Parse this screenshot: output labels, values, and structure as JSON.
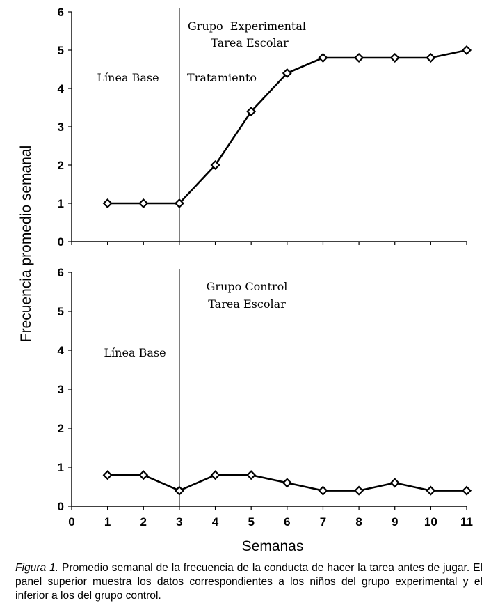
{
  "chart_data": [
    {
      "type": "line",
      "panel": "top",
      "title": "Grupo  Experimental",
      "subtitle": "Tarea Escolar",
      "x": [
        1,
        2,
        3,
        4,
        5,
        6,
        7,
        8,
        9,
        10,
        11
      ],
      "series": [
        {
          "name": "Grupo Experimental",
          "values": [
            1,
            1,
            1,
            2,
            3.4,
            4.4,
            4.8,
            4.8,
            4.8,
            4.8,
            5
          ]
        }
      ],
      "phase_line_x": 3,
      "phase_labels": [
        "Línea Base",
        "Tratamiento"
      ],
      "xlim": [
        0,
        11
      ],
      "ylim": [
        0,
        6
      ],
      "yticks": [
        0,
        1,
        2,
        3,
        4,
        5,
        6
      ],
      "xticks": [],
      "grid": false
    },
    {
      "type": "line",
      "panel": "bottom",
      "title": "Grupo Control",
      "subtitle": "Tarea Escolar",
      "x": [
        1,
        2,
        3,
        4,
        5,
        6,
        7,
        8,
        9,
        10,
        11
      ],
      "series": [
        {
          "name": "Grupo Control",
          "values": [
            0.8,
            0.8,
            0.4,
            0.8,
            0.8,
            0.6,
            0.4,
            0.4,
            0.6,
            0.4,
            0.4
          ]
        }
      ],
      "phase_line_x": 3,
      "phase_labels": [
        "Línea Base"
      ],
      "xlim": [
        0,
        11
      ],
      "ylim": [
        0,
        6
      ],
      "yticks": [
        0,
        1,
        2,
        3,
        4,
        5,
        6
      ],
      "xticks": [
        0,
        1,
        2,
        3,
        4,
        5,
        6,
        7,
        8,
        9,
        10,
        11
      ],
      "grid": false
    }
  ],
  "axes": {
    "ylabel": "Frecuencia promedio semanal",
    "xlabel": "Semanas"
  },
  "caption": {
    "figure_number": "Figura 1.",
    "text": "Promedio semanal de la frecuencia de la conducta de hacer la tarea antes de jugar. El panel superior muestra los datos correspondientes a los niños del grupo experimental y el inferior a los del grupo control."
  }
}
